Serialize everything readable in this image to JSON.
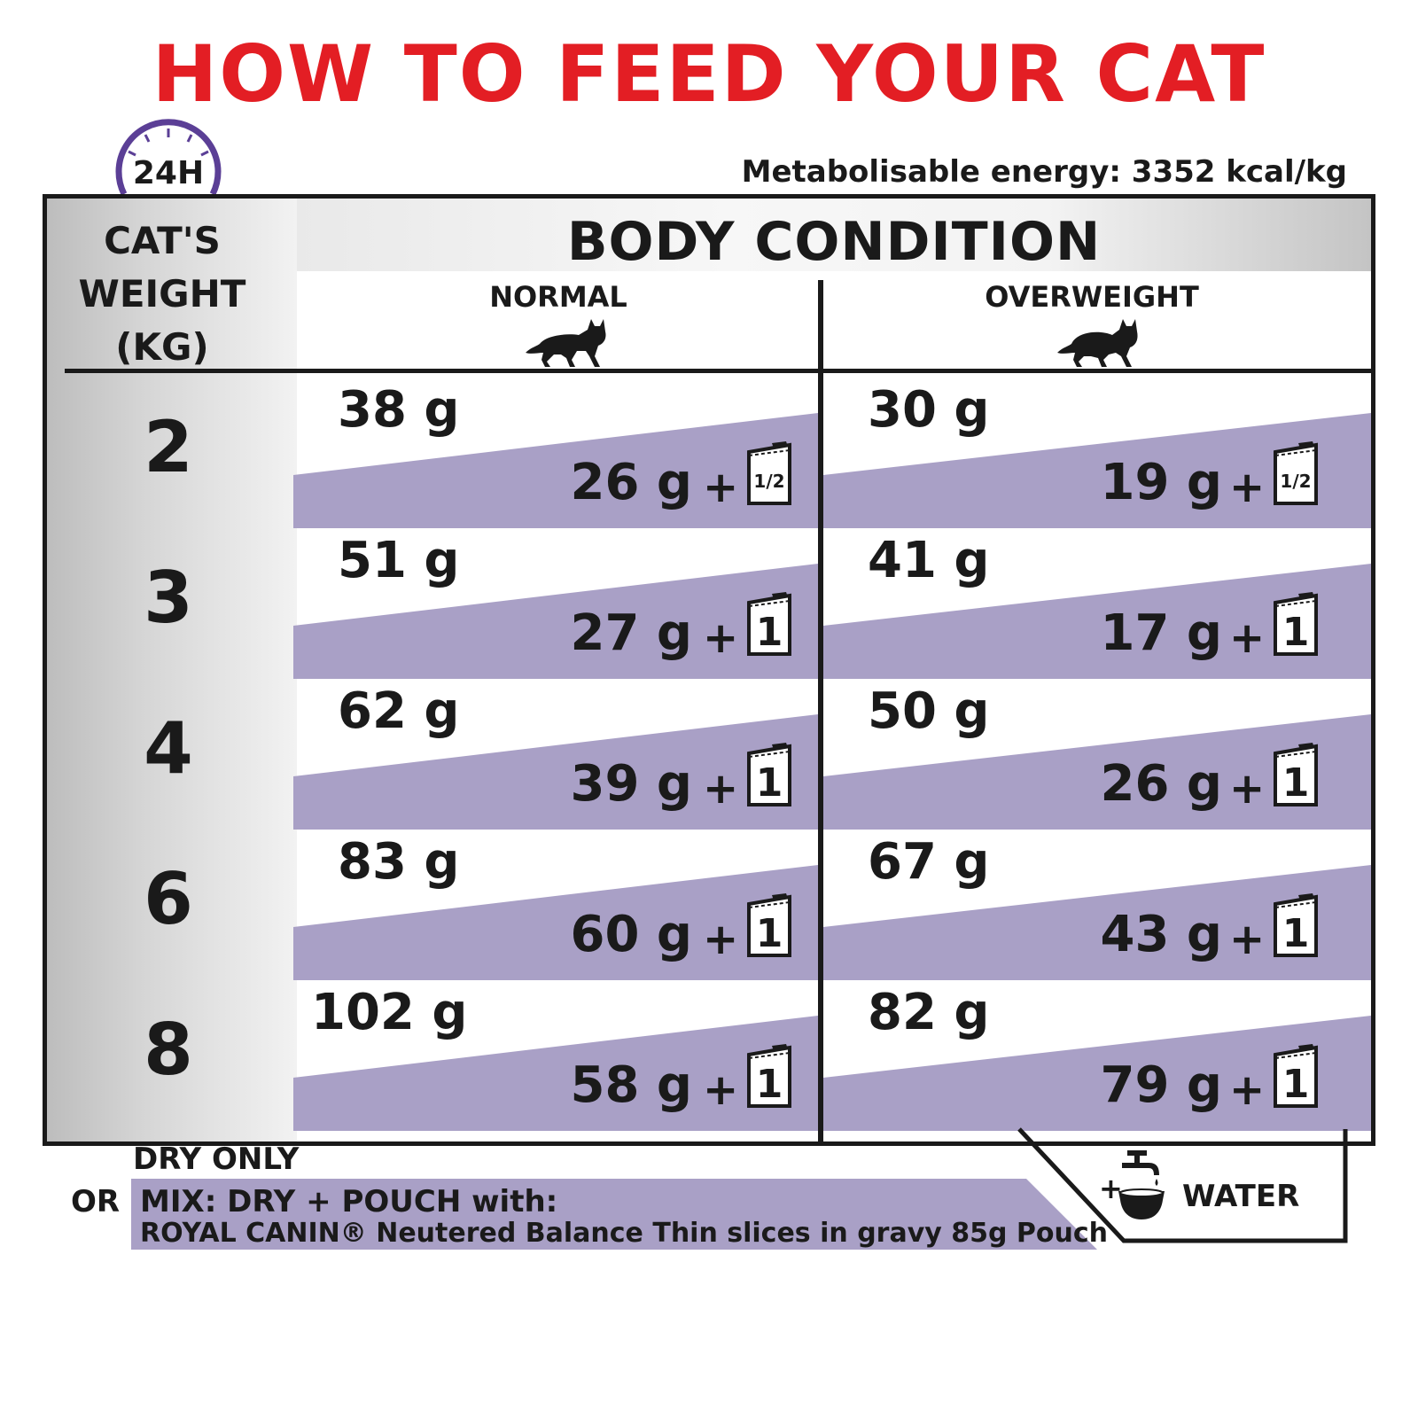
{
  "title": "HOW TO FEED YOUR CAT",
  "badge_24h": "24H",
  "energy": "Metabolisable energy: 3352 kcal/kg",
  "colors": {
    "title_red": "#e31e24",
    "lavender": "#a9a0c6",
    "clock_purple": "#5b3f96",
    "ink": "#1a1a1a"
  },
  "table": {
    "weight_header": [
      "CAT'S",
      "WEIGHT",
      "(KG)"
    ],
    "body_header": "BODY CONDITION",
    "columns": [
      {
        "label": "NORMAL",
        "icon": "cat-silhouette-icon"
      },
      {
        "label": "OVERWEIGHT",
        "icon": "cat-silhouette-icon"
      }
    ],
    "rows": [
      {
        "weight": "2",
        "normal": {
          "dry": "38 g",
          "mix": "26 g",
          "pouch": "1/2"
        },
        "overweight": {
          "dry": "30 g",
          "mix": "19 g",
          "pouch": "1/2"
        }
      },
      {
        "weight": "3",
        "normal": {
          "dry": "51 g",
          "mix": "27 g",
          "pouch": "1"
        },
        "overweight": {
          "dry": "41 g",
          "mix": "17 g",
          "pouch": "1"
        }
      },
      {
        "weight": "4",
        "normal": {
          "dry": "62 g",
          "mix": "39 g",
          "pouch": "1"
        },
        "overweight": {
          "dry": "50 g",
          "mix": "26 g",
          "pouch": "1"
        }
      },
      {
        "weight": "6",
        "normal": {
          "dry": "83 g",
          "mix": "60 g",
          "pouch": "1"
        },
        "overweight": {
          "dry": "67 g",
          "mix": "43 g",
          "pouch": "1"
        }
      },
      {
        "weight": "8",
        "normal": {
          "dry": "102 g",
          "mix": "58 g",
          "pouch": "1"
        },
        "overweight": {
          "dry": "82 g",
          "mix": "79 g",
          "pouch": "1"
        }
      }
    ],
    "plus": "+"
  },
  "legend": {
    "dry_only": "DRY ONLY",
    "or": "OR",
    "mix_title": "MIX: DRY + POUCH with:",
    "mix_product": "ROYAL CANIN® Neutered Balance Thin slices in gravy 85g Pouch",
    "water_plus": "+",
    "water": "WATER",
    "water_icon": "water-tap-bowl-icon"
  }
}
